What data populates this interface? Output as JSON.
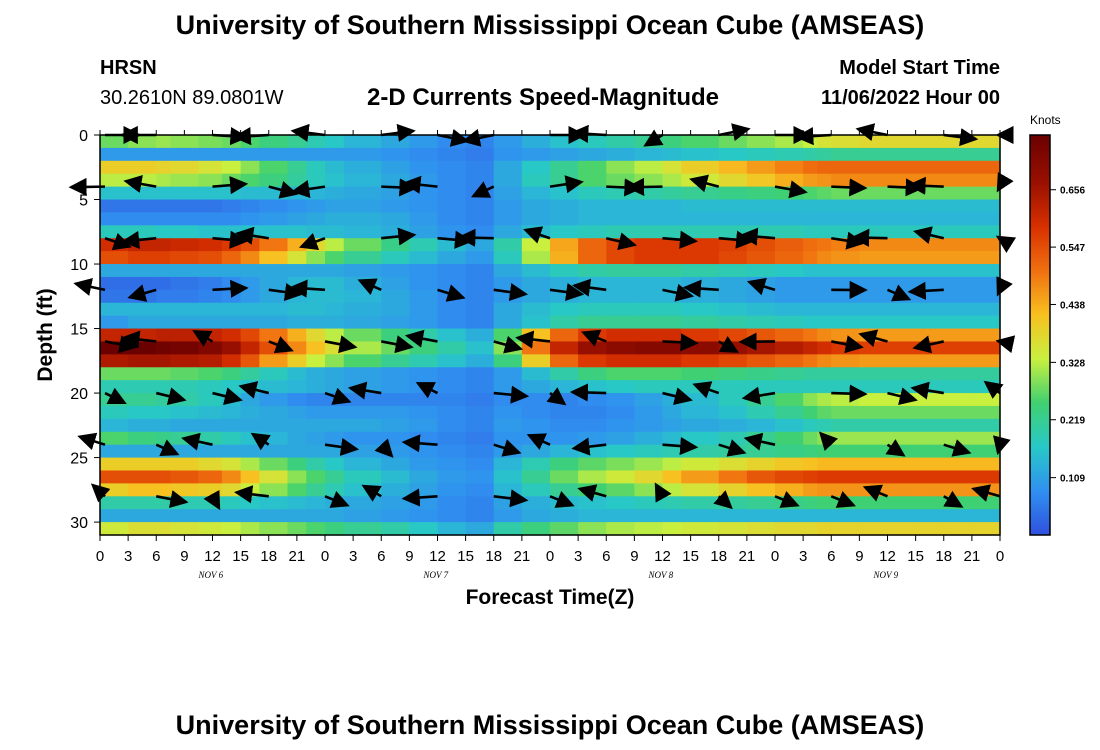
{
  "header": {
    "main_title": "University of Southern Mississippi Ocean Cube (AMSEAS)",
    "station": "HRSN",
    "coords": "30.2610N  89.0801W",
    "chart_title": "2-D Currents Speed-Magnitude",
    "start_label": "Model Start Time",
    "start_value": "11/06/2022 Hour 00"
  },
  "footer": {
    "main_title": "University of Southern Mississippi Ocean Cube (AMSEAS)"
  },
  "colors": {
    "scale": [
      "#3050e0",
      "#3090f0",
      "#28c8c8",
      "#40d070",
      "#c8f040",
      "#f8c020",
      "#f07010",
      "#d83000",
      "#9a1000",
      "#6a0000"
    ]
  },
  "chart_data": {
    "type": "heatmap",
    "title": "2-D Currents Speed-Magnitude",
    "xlabel": "Forecast Time(Z)",
    "ylabel": "Depth (ft)",
    "x_ticks": [
      "0",
      "3",
      "6",
      "9",
      "12",
      "15",
      "18",
      "21",
      "0",
      "3",
      "6",
      "9",
      "12",
      "15",
      "18",
      "21",
      "0",
      "3",
      "6",
      "9",
      "12",
      "15",
      "18",
      "21",
      "0",
      "3",
      "6",
      "9",
      "12",
      "15",
      "18",
      "21",
      "0"
    ],
    "x_range_hours": [
      0,
      96
    ],
    "date_labels": [
      "NOV 6",
      "NOV 7",
      "NOV 8",
      "NOV 9"
    ],
    "y_ticks": [
      0,
      5,
      10,
      15,
      20,
      25,
      30
    ],
    "ylim": [
      0,
      31
    ],
    "colorbar": {
      "units": "Knots",
      "ticks": [
        0.109,
        0.219,
        0.328,
        0.438,
        0.547,
        0.656
      ],
      "range": [
        0.0,
        0.76
      ]
    },
    "speed_columns_hours": [
      0,
      3,
      6,
      7.5,
      10.5,
      13,
      15,
      17,
      20,
      22,
      24,
      26,
      30,
      33,
      36,
      39,
      42,
      45,
      48,
      51,
      54,
      57,
      60,
      62,
      66,
      69,
      72,
      75,
      76.5,
      78,
      81,
      84,
      87,
      90,
      93,
      96
    ],
    "speed_columns_knots": [
      [
        0.28,
        0.1,
        0.4,
        0.33,
        0.16,
        0.05,
        0.08,
        0.18,
        0.6,
        0.55,
        0.12,
        0.04,
        0.05,
        0.14,
        0.1,
        0.62,
        0.76,
        0.65,
        0.28,
        0.19,
        0.22,
        0.18,
        0.14,
        0.26,
        0.12,
        0.4,
        0.55,
        0.4,
        0.2,
        0.12,
        0.35
      ],
      [
        0.3,
        0.1,
        0.4,
        0.33,
        0.16,
        0.05,
        0.08,
        0.18,
        0.62,
        0.57,
        0.12,
        0.04,
        0.05,
        0.14,
        0.12,
        0.62,
        0.76,
        0.66,
        0.28,
        0.19,
        0.22,
        0.17,
        0.13,
        0.24,
        0.12,
        0.4,
        0.55,
        0.42,
        0.2,
        0.12,
        0.37
      ],
      [
        0.31,
        0.1,
        0.39,
        0.32,
        0.16,
        0.05,
        0.08,
        0.17,
        0.62,
        0.57,
        0.12,
        0.04,
        0.06,
        0.14,
        0.12,
        0.63,
        0.75,
        0.66,
        0.28,
        0.19,
        0.21,
        0.17,
        0.13,
        0.23,
        0.12,
        0.4,
        0.55,
        0.42,
        0.2,
        0.12,
        0.37
      ],
      [
        0.3,
        0.1,
        0.38,
        0.31,
        0.16,
        0.05,
        0.08,
        0.17,
        0.61,
        0.56,
        0.12,
        0.05,
        0.06,
        0.14,
        0.12,
        0.63,
        0.74,
        0.65,
        0.27,
        0.19,
        0.2,
        0.16,
        0.12,
        0.22,
        0.12,
        0.4,
        0.54,
        0.41,
        0.19,
        0.12,
        0.36
      ],
      [
        0.29,
        0.1,
        0.36,
        0.3,
        0.16,
        0.05,
        0.08,
        0.16,
        0.6,
        0.55,
        0.12,
        0.06,
        0.07,
        0.14,
        0.12,
        0.62,
        0.72,
        0.64,
        0.26,
        0.18,
        0.18,
        0.15,
        0.12,
        0.2,
        0.12,
        0.38,
        0.52,
        0.4,
        0.19,
        0.12,
        0.35
      ],
      [
        0.28,
        0.1,
        0.34,
        0.28,
        0.16,
        0.06,
        0.08,
        0.16,
        0.58,
        0.52,
        0.12,
        0.08,
        0.08,
        0.14,
        0.12,
        0.6,
        0.68,
        0.6,
        0.24,
        0.17,
        0.15,
        0.14,
        0.12,
        0.18,
        0.12,
        0.36,
        0.48,
        0.38,
        0.18,
        0.12,
        0.34
      ],
      [
        0.26,
        0.1,
        0.3,
        0.26,
        0.15,
        0.07,
        0.09,
        0.16,
        0.55,
        0.48,
        0.12,
        0.1,
        0.1,
        0.14,
        0.12,
        0.56,
        0.62,
        0.54,
        0.21,
        0.16,
        0.12,
        0.13,
        0.12,
        0.16,
        0.12,
        0.32,
        0.42,
        0.34,
        0.17,
        0.12,
        0.32
      ],
      [
        0.24,
        0.1,
        0.26,
        0.24,
        0.15,
        0.08,
        0.1,
        0.16,
        0.5,
        0.42,
        0.12,
        0.12,
        0.12,
        0.14,
        0.12,
        0.5,
        0.55,
        0.46,
        0.18,
        0.15,
        0.1,
        0.12,
        0.12,
        0.14,
        0.12,
        0.28,
        0.36,
        0.3,
        0.16,
        0.12,
        0.3
      ],
      [
        0.22,
        0.1,
        0.22,
        0.21,
        0.14,
        0.09,
        0.11,
        0.16,
        0.44,
        0.36,
        0.12,
        0.14,
        0.14,
        0.15,
        0.13,
        0.44,
        0.48,
        0.4,
        0.15,
        0.14,
        0.08,
        0.11,
        0.12,
        0.12,
        0.12,
        0.24,
        0.3,
        0.26,
        0.15,
        0.12,
        0.28
      ],
      [
        0.19,
        0.1,
        0.18,
        0.18,
        0.14,
        0.1,
        0.12,
        0.15,
        0.38,
        0.3,
        0.12,
        0.15,
        0.15,
        0.15,
        0.13,
        0.38,
        0.42,
        0.34,
        0.13,
        0.13,
        0.07,
        0.1,
        0.12,
        0.11,
        0.12,
        0.2,
        0.26,
        0.22,
        0.14,
        0.12,
        0.26
      ],
      [
        0.17,
        0.1,
        0.15,
        0.16,
        0.13,
        0.11,
        0.13,
        0.15,
        0.33,
        0.26,
        0.12,
        0.15,
        0.15,
        0.14,
        0.13,
        0.33,
        0.37,
        0.3,
        0.12,
        0.12,
        0.07,
        0.1,
        0.12,
        0.1,
        0.12,
        0.17,
        0.22,
        0.19,
        0.13,
        0.12,
        0.24
      ],
      [
        0.14,
        0.1,
        0.13,
        0.14,
        0.12,
        0.11,
        0.13,
        0.14,
        0.28,
        0.22,
        0.11,
        0.13,
        0.14,
        0.13,
        0.12,
        0.28,
        0.32,
        0.26,
        0.11,
        0.11,
        0.07,
        0.1,
        0.12,
        0.09,
        0.11,
        0.14,
        0.18,
        0.16,
        0.12,
        0.11,
        0.22
      ],
      [
        0.12,
        0.09,
        0.11,
        0.12,
        0.11,
        0.1,
        0.12,
        0.13,
        0.23,
        0.18,
        0.1,
        0.11,
        0.12,
        0.12,
        0.11,
        0.24,
        0.28,
        0.22,
        0.1,
        0.1,
        0.07,
        0.1,
        0.11,
        0.09,
        0.1,
        0.12,
        0.15,
        0.13,
        0.11,
        0.1,
        0.2
      ],
      [
        0.1,
        0.08,
        0.09,
        0.1,
        0.09,
        0.09,
        0.1,
        0.11,
        0.19,
        0.15,
        0.09,
        0.09,
        0.1,
        0.1,
        0.1,
        0.2,
        0.24,
        0.19,
        0.09,
        0.09,
        0.07,
        0.09,
        0.1,
        0.08,
        0.09,
        0.1,
        0.12,
        0.11,
        0.1,
        0.09,
        0.17
      ],
      [
        0.08,
        0.07,
        0.08,
        0.08,
        0.08,
        0.08,
        0.08,
        0.09,
        0.15,
        0.12,
        0.08,
        0.08,
        0.08,
        0.08,
        0.08,
        0.16,
        0.2,
        0.16,
        0.08,
        0.08,
        0.07,
        0.08,
        0.08,
        0.07,
        0.08,
        0.09,
        0.1,
        0.09,
        0.08,
        0.08,
        0.14
      ],
      [
        0.07,
        0.06,
        0.07,
        0.07,
        0.07,
        0.07,
        0.07,
        0.08,
        0.12,
        0.1,
        0.07,
        0.07,
        0.07,
        0.07,
        0.07,
        0.13,
        0.16,
        0.13,
        0.07,
        0.07,
        0.06,
        0.07,
        0.07,
        0.06,
        0.07,
        0.08,
        0.09,
        0.08,
        0.07,
        0.07,
        0.12
      ],
      [
        0.1,
        0.09,
        0.12,
        0.12,
        0.11,
        0.1,
        0.1,
        0.12,
        0.2,
        0.18,
        0.12,
        0.1,
        0.1,
        0.12,
        0.12,
        0.26,
        0.3,
        0.24,
        0.1,
        0.1,
        0.08,
        0.09,
        0.1,
        0.09,
        0.1,
        0.14,
        0.16,
        0.14,
        0.11,
        0.1,
        0.2
      ],
      [
        0.13,
        0.1,
        0.17,
        0.18,
        0.14,
        0.12,
        0.12,
        0.15,
        0.34,
        0.32,
        0.15,
        0.12,
        0.12,
        0.15,
        0.16,
        0.42,
        0.5,
        0.4,
        0.15,
        0.12,
        0.08,
        0.08,
        0.09,
        0.09,
        0.12,
        0.19,
        0.22,
        0.18,
        0.13,
        0.12,
        0.24
      ],
      [
        0.16,
        0.11,
        0.22,
        0.22,
        0.16,
        0.13,
        0.13,
        0.17,
        0.45,
        0.44,
        0.18,
        0.13,
        0.13,
        0.17,
        0.2,
        0.52,
        0.62,
        0.52,
        0.2,
        0.14,
        0.07,
        0.07,
        0.08,
        0.09,
        0.14,
        0.24,
        0.28,
        0.22,
        0.15,
        0.13,
        0.27
      ],
      [
        0.18,
        0.12,
        0.26,
        0.26,
        0.18,
        0.14,
        0.14,
        0.18,
        0.52,
        0.52,
        0.2,
        0.14,
        0.14,
        0.18,
        0.22,
        0.58,
        0.68,
        0.58,
        0.24,
        0.16,
        0.08,
        0.07,
        0.08,
        0.1,
        0.16,
        0.27,
        0.32,
        0.25,
        0.16,
        0.14,
        0.3
      ],
      [
        0.2,
        0.13,
        0.3,
        0.28,
        0.19,
        0.14,
        0.14,
        0.19,
        0.56,
        0.56,
        0.21,
        0.14,
        0.14,
        0.18,
        0.22,
        0.6,
        0.7,
        0.6,
        0.26,
        0.17,
        0.09,
        0.08,
        0.09,
        0.11,
        0.17,
        0.29,
        0.35,
        0.27,
        0.17,
        0.14,
        0.32
      ],
      [
        0.22,
        0.14,
        0.33,
        0.3,
        0.2,
        0.14,
        0.14,
        0.19,
        0.58,
        0.58,
        0.21,
        0.14,
        0.14,
        0.18,
        0.22,
        0.6,
        0.71,
        0.6,
        0.26,
        0.18,
        0.11,
        0.1,
        0.1,
        0.13,
        0.18,
        0.31,
        0.38,
        0.3,
        0.18,
        0.14,
        0.33
      ],
      [
        0.24,
        0.15,
        0.36,
        0.32,
        0.21,
        0.14,
        0.14,
        0.19,
        0.58,
        0.58,
        0.21,
        0.14,
        0.14,
        0.18,
        0.22,
        0.6,
        0.71,
        0.6,
        0.26,
        0.18,
        0.13,
        0.12,
        0.11,
        0.15,
        0.19,
        0.33,
        0.42,
        0.33,
        0.19,
        0.14,
        0.34
      ],
      [
        0.26,
        0.16,
        0.4,
        0.35,
        0.22,
        0.15,
        0.14,
        0.19,
        0.58,
        0.58,
        0.2,
        0.13,
        0.13,
        0.17,
        0.21,
        0.58,
        0.7,
        0.58,
        0.25,
        0.18,
        0.15,
        0.14,
        0.12,
        0.17,
        0.2,
        0.35,
        0.46,
        0.36,
        0.2,
        0.14,
        0.35
      ],
      [
        0.28,
        0.17,
        0.43,
        0.38,
        0.23,
        0.15,
        0.14,
        0.19,
        0.57,
        0.56,
        0.19,
        0.12,
        0.12,
        0.16,
        0.2,
        0.56,
        0.68,
        0.56,
        0.24,
        0.18,
        0.18,
        0.16,
        0.13,
        0.19,
        0.21,
        0.37,
        0.5,
        0.39,
        0.21,
        0.14,
        0.36
      ],
      [
        0.3,
        0.18,
        0.46,
        0.41,
        0.24,
        0.15,
        0.14,
        0.19,
        0.55,
        0.54,
        0.18,
        0.11,
        0.11,
        0.15,
        0.19,
        0.54,
        0.66,
        0.54,
        0.23,
        0.18,
        0.22,
        0.19,
        0.14,
        0.22,
        0.22,
        0.39,
        0.54,
        0.42,
        0.22,
        0.14,
        0.37
      ],
      [
        0.32,
        0.19,
        0.49,
        0.44,
        0.25,
        0.15,
        0.14,
        0.19,
        0.53,
        0.52,
        0.17,
        0.1,
        0.1,
        0.14,
        0.18,
        0.52,
        0.64,
        0.52,
        0.22,
        0.18,
        0.26,
        0.22,
        0.16,
        0.25,
        0.23,
        0.41,
        0.56,
        0.44,
        0.23,
        0.14,
        0.38
      ],
      [
        0.34,
        0.2,
        0.51,
        0.46,
        0.26,
        0.15,
        0.14,
        0.18,
        0.51,
        0.5,
        0.16,
        0.1,
        0.1,
        0.14,
        0.17,
        0.5,
        0.62,
        0.5,
        0.21,
        0.18,
        0.3,
        0.25,
        0.18,
        0.28,
        0.24,
        0.42,
        0.57,
        0.46,
        0.24,
        0.14,
        0.38
      ],
      [
        0.36,
        0.21,
        0.52,
        0.47,
        0.27,
        0.15,
        0.14,
        0.18,
        0.5,
        0.48,
        0.16,
        0.1,
        0.1,
        0.14,
        0.17,
        0.48,
        0.6,
        0.48,
        0.21,
        0.18,
        0.32,
        0.27,
        0.19,
        0.3,
        0.25,
        0.43,
        0.58,
        0.47,
        0.25,
        0.14,
        0.39
      ],
      [
        0.37,
        0.22,
        0.52,
        0.48,
        0.28,
        0.15,
        0.14,
        0.18,
        0.49,
        0.47,
        0.16,
        0.1,
        0.1,
        0.14,
        0.17,
        0.47,
        0.58,
        0.47,
        0.21,
        0.18,
        0.33,
        0.28,
        0.2,
        0.31,
        0.25,
        0.43,
        0.58,
        0.47,
        0.25,
        0.14,
        0.39
      ],
      [
        0.38,
        0.22,
        0.52,
        0.48,
        0.28,
        0.15,
        0.14,
        0.18,
        0.48,
        0.46,
        0.16,
        0.1,
        0.1,
        0.14,
        0.17,
        0.46,
        0.57,
        0.46,
        0.21,
        0.18,
        0.34,
        0.28,
        0.2,
        0.31,
        0.25,
        0.43,
        0.58,
        0.47,
        0.25,
        0.14,
        0.39
      ],
      [
        0.38,
        0.22,
        0.52,
        0.48,
        0.28,
        0.15,
        0.14,
        0.18,
        0.48,
        0.46,
        0.16,
        0.1,
        0.1,
        0.14,
        0.17,
        0.46,
        0.57,
        0.46,
        0.21,
        0.18,
        0.34,
        0.28,
        0.2,
        0.31,
        0.25,
        0.43,
        0.58,
        0.47,
        0.25,
        0.14,
        0.39
      ],
      [
        0.38,
        0.22,
        0.52,
        0.48,
        0.28,
        0.15,
        0.14,
        0.18,
        0.48,
        0.46,
        0.16,
        0.1,
        0.1,
        0.14,
        0.17,
        0.46,
        0.57,
        0.46,
        0.21,
        0.18,
        0.34,
        0.28,
        0.2,
        0.31,
        0.25,
        0.43,
        0.58,
        0.47,
        0.25,
        0.14,
        0.39
      ],
      [
        0.38,
        0.22,
        0.52,
        0.48,
        0.28,
        0.15,
        0.14,
        0.18,
        0.48,
        0.46,
        0.16,
        0.1,
        0.1,
        0.14,
        0.17,
        0.46,
        0.57,
        0.46,
        0.21,
        0.18,
        0.34,
        0.28,
        0.2,
        0.31,
        0.25,
        0.43,
        0.58,
        0.47,
        0.25,
        0.14,
        0.39
      ],
      [
        0.38,
        0.22,
        0.52,
        0.48,
        0.28,
        0.15,
        0.14,
        0.18,
        0.48,
        0.46,
        0.16,
        0.1,
        0.1,
        0.14,
        0.17,
        0.46,
        0.57,
        0.46,
        0.21,
        0.18,
        0.34,
        0.28,
        0.2,
        0.31,
        0.25,
        0.43,
        0.58,
        0.47,
        0.25,
        0.14,
        0.39
      ],
      [
        0.38,
        0.22,
        0.52,
        0.48,
        0.28,
        0.15,
        0.14,
        0.18,
        0.48,
        0.46,
        0.16,
        0.1,
        0.1,
        0.14,
        0.17,
        0.46,
        0.57,
        0.46,
        0.21,
        0.18,
        0.34,
        0.28,
        0.2,
        0.31,
        0.25,
        0.43,
        0.58,
        0.47,
        0.25,
        0.14,
        0.39
      ]
    ],
    "speed_by_column_and_depth_note": "rows indexed by speed_columns_hours, each row lists speed at depth 0..30 ft",
    "vector_depths_ft": [
      0,
      4,
      8,
      12,
      16,
      20,
      24,
      28
    ],
    "vector_times_hours": [
      0,
      6,
      12,
      18,
      24,
      30,
      36,
      42,
      48,
      54,
      60,
      66,
      72,
      78,
      84,
      90,
      96
    ]
  }
}
